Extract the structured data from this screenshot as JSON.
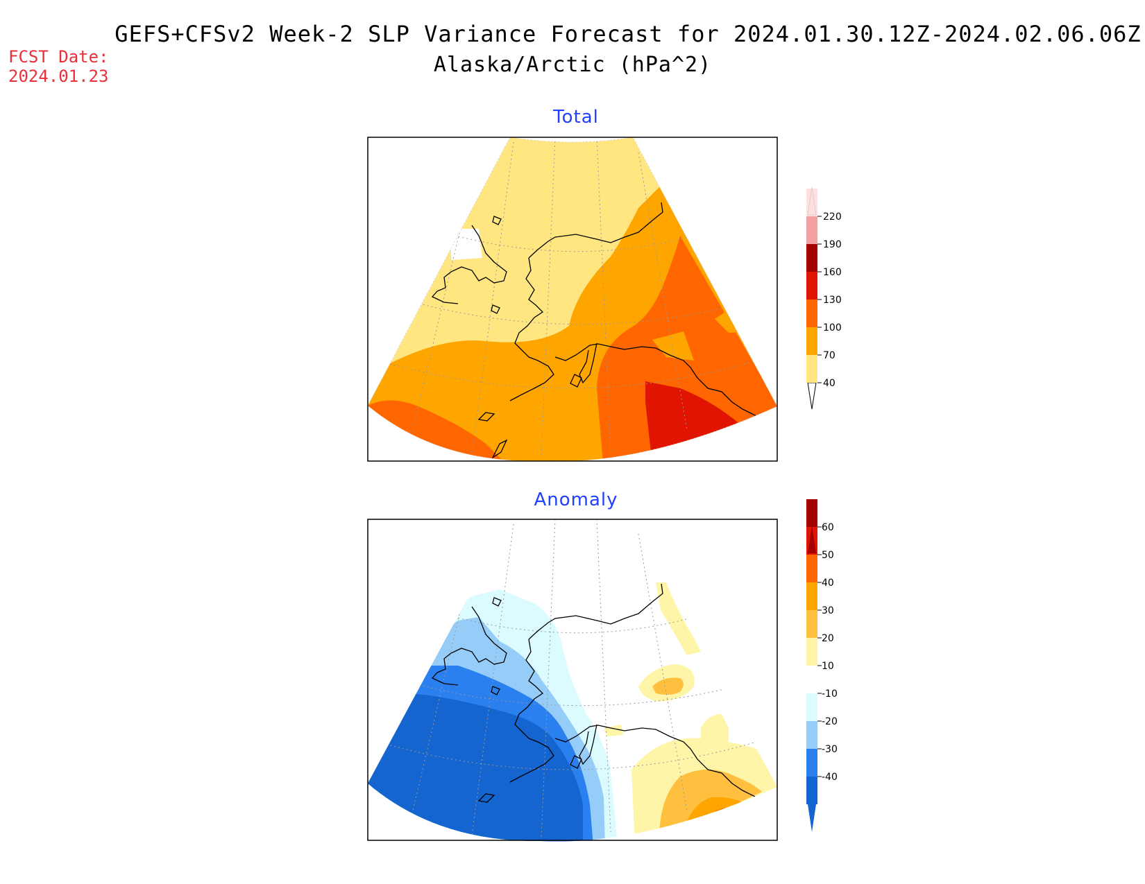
{
  "header": {
    "title": "GEFS+CFSv2 Week-2 SLP Variance Forecast for 2024.01.30.12Z-2024.02.06.06Z",
    "subtitle": "Alaska/Arctic (hPa^2)",
    "fcst_label": "FCST Date:",
    "fcst_date": "2024.01.23"
  },
  "panels": [
    {
      "title": "Total",
      "colorbar": {
        "labels": [
          "40",
          "70",
          "100",
          "130",
          "160",
          "190",
          "220"
        ],
        "colors": [
          "#ffe680",
          "#ffa500",
          "#ff6600",
          "#e01400",
          "#a50000",
          "#f4a0a0",
          "#ffe0e0"
        ],
        "below_color": "#ffffff"
      }
    },
    {
      "title": "Anomaly",
      "colorbar": {
        "labels": [
          "-40",
          "-30",
          "-20",
          "-10",
          "10",
          "20",
          "30",
          "40",
          "50",
          "60"
        ],
        "colors": [
          "#1565d0",
          "#2a80ee",
          "#96cdf8",
          "#dbfbff",
          "#ffffff",
          "#fff5a8",
          "#ffc040",
          "#ffa500",
          "#ff6600",
          "#e01400",
          "#a50000"
        ]
      }
    }
  ]
}
